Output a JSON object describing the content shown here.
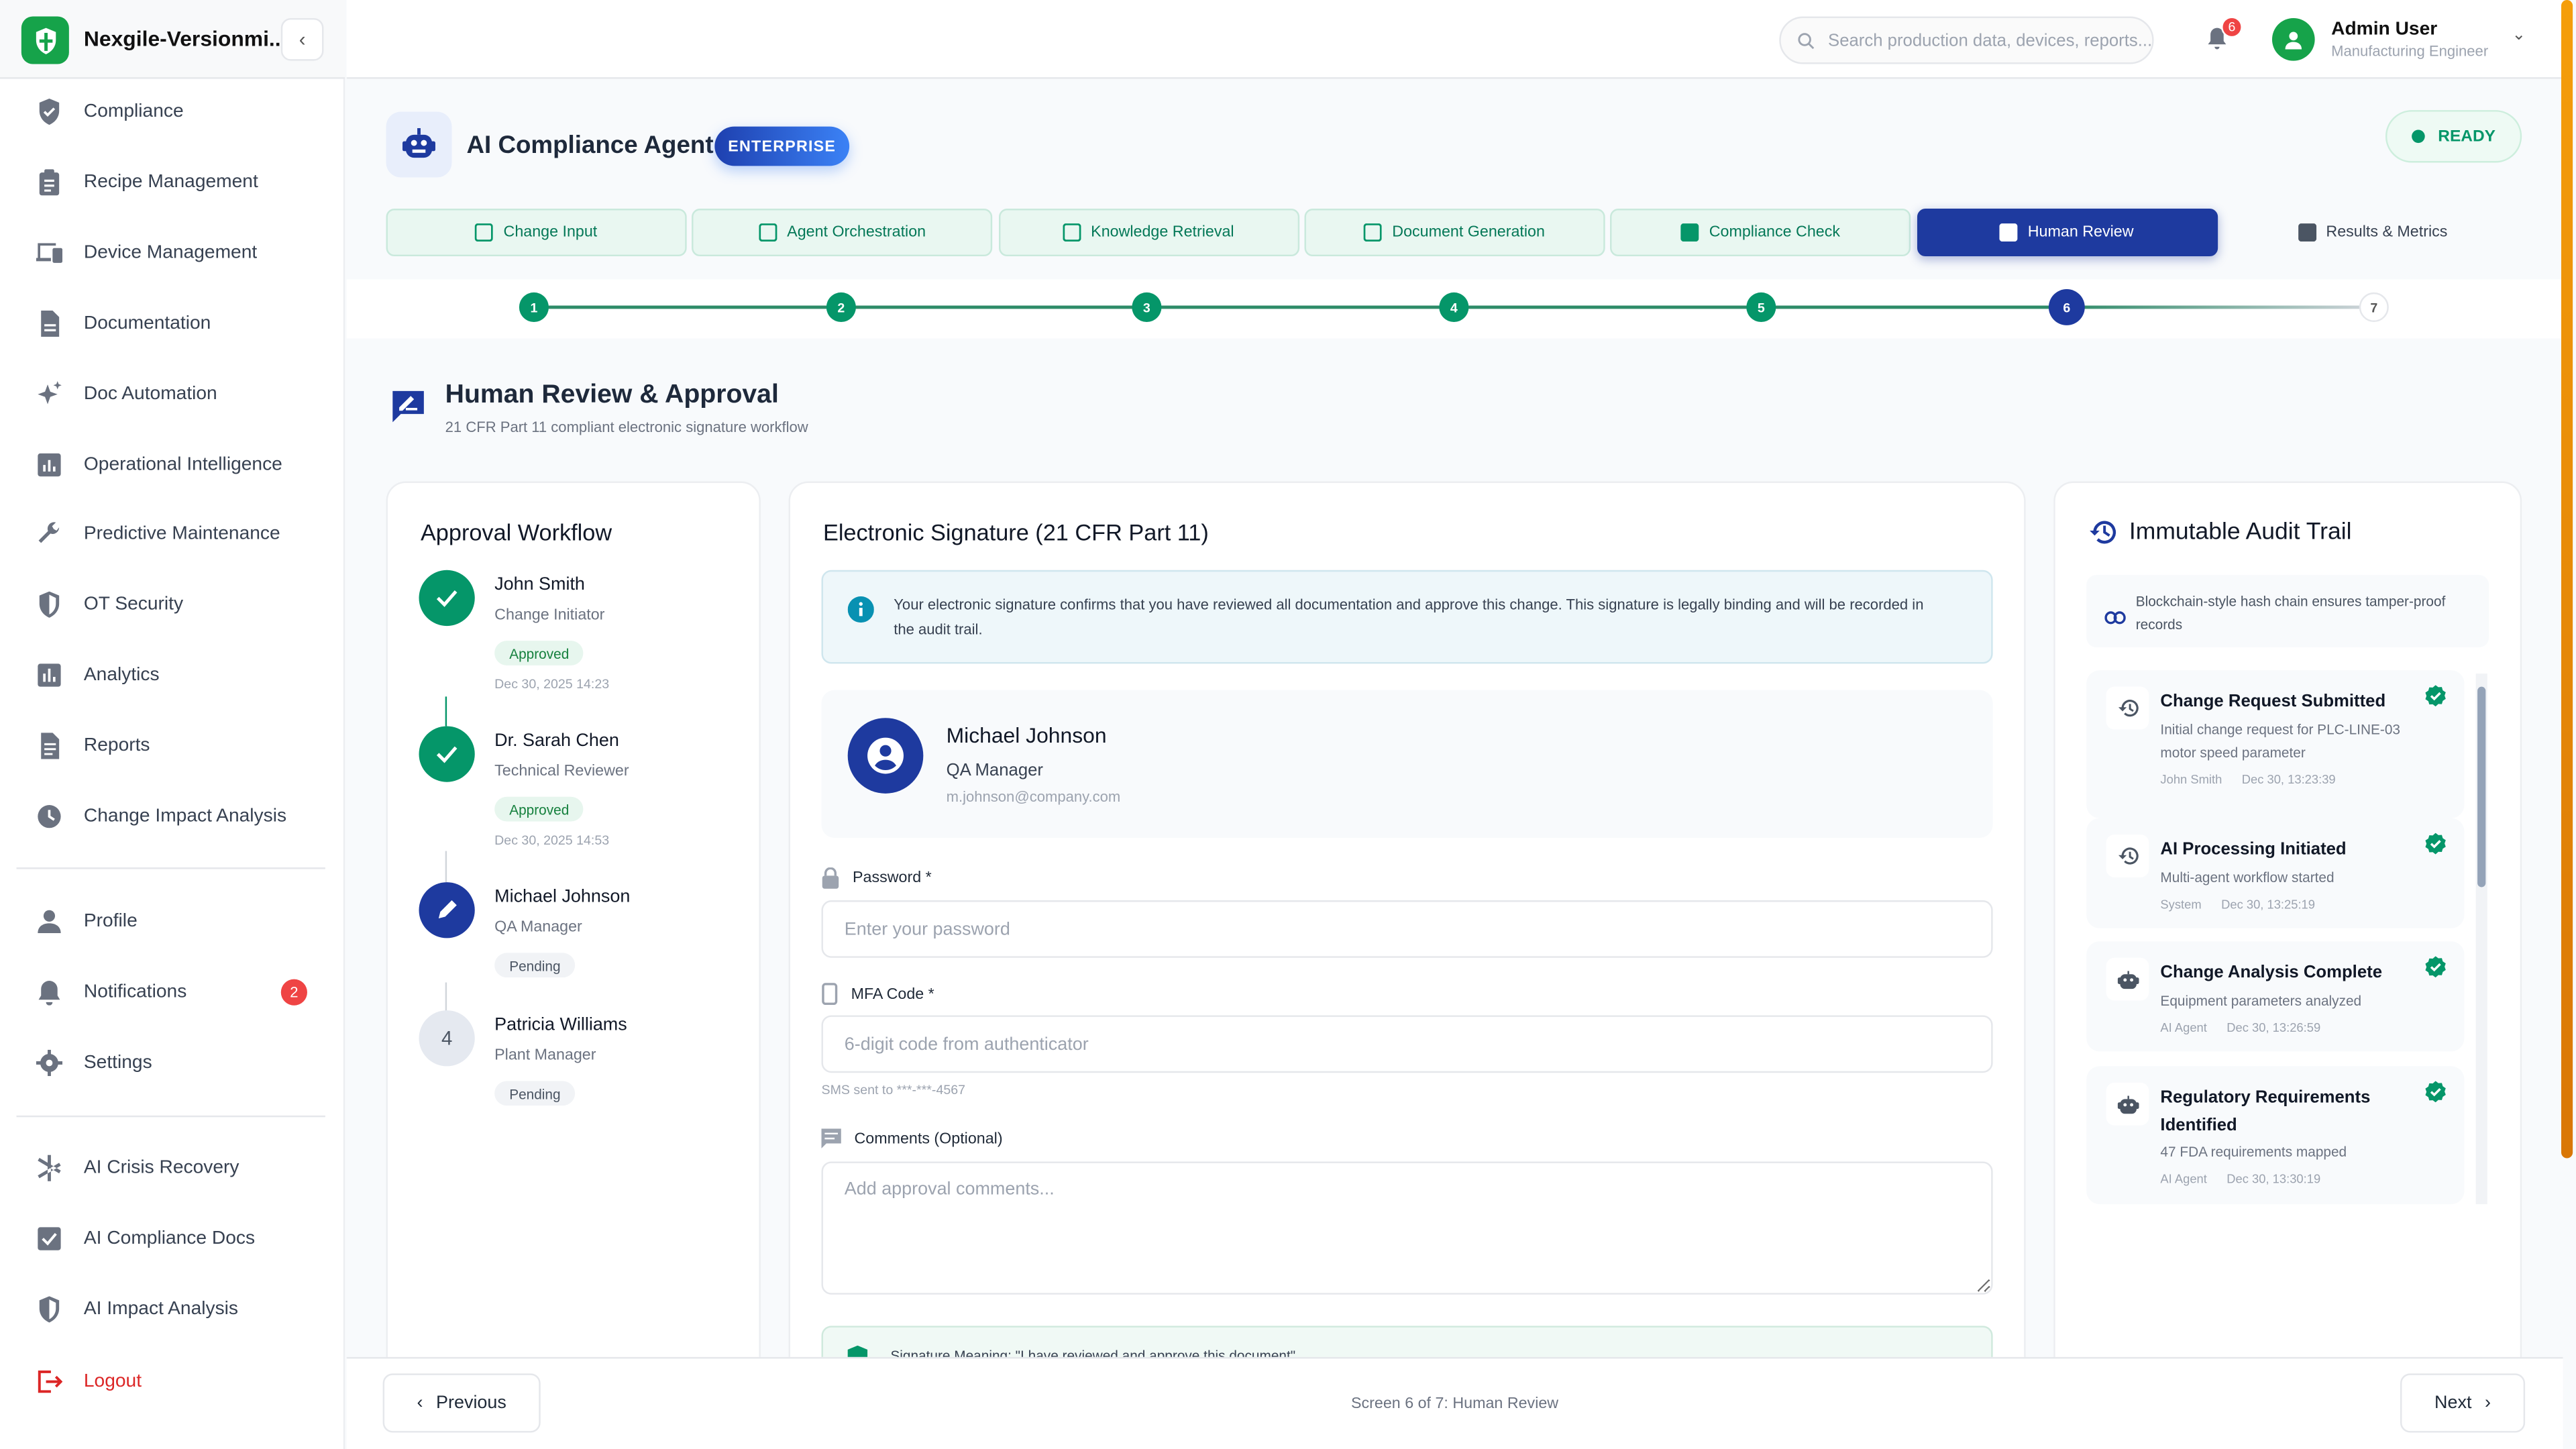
{
  "brand": {
    "name": "Nexgile-Versionmi..."
  },
  "sidebar": {
    "items": [
      {
        "label": "Compliance",
        "icon": "shield-check-icon"
      },
      {
        "label": "Recipe Management",
        "icon": "clipboard-icon"
      },
      {
        "label": "Device Management",
        "icon": "devices-icon"
      },
      {
        "label": "Documentation",
        "icon": "document-icon"
      },
      {
        "label": "Doc Automation",
        "icon": "sparkle-icon"
      },
      {
        "label": "Operational Intelligence",
        "icon": "chart-icon"
      },
      {
        "label": "Predictive Maintenance",
        "icon": "wrench-icon"
      },
      {
        "label": "OT Security",
        "icon": "shield-icon"
      },
      {
        "label": "Analytics",
        "icon": "bar-chart-icon"
      },
      {
        "label": "Reports",
        "icon": "report-icon"
      },
      {
        "label": "Change Impact Analysis",
        "icon": "impact-icon"
      }
    ],
    "account": [
      {
        "label": "Profile",
        "icon": "user-icon"
      },
      {
        "label": "Notifications",
        "icon": "bell-icon",
        "badge": "2"
      },
      {
        "label": "Settings",
        "icon": "gear-icon"
      }
    ],
    "ai": [
      {
        "label": "AI Crisis Recovery",
        "icon": "asterisk-icon"
      },
      {
        "label": "AI Compliance Docs",
        "icon": "checklist-icon"
      },
      {
        "label": "AI Impact Analysis",
        "icon": "shield-icon"
      }
    ],
    "logout": "Logout"
  },
  "topbar": {
    "search_placeholder": "Search production data, devices, reports...",
    "notif_count": "6",
    "user_name": "Admin User",
    "user_role": "Manufacturing Engineer"
  },
  "agent": {
    "title": "AI Compliance Agent",
    "badge": "ENTERPRISE",
    "status": "READY"
  },
  "tabs": [
    {
      "label": "Change Input",
      "state": "done"
    },
    {
      "label": "Agent Orchestration",
      "state": "done"
    },
    {
      "label": "Knowledge Retrieval",
      "state": "done"
    },
    {
      "label": "Document Generation",
      "state": "done"
    },
    {
      "label": "Compliance Check",
      "state": "done"
    },
    {
      "label": "Human Review",
      "state": "active"
    },
    {
      "label": "Results & Metrics",
      "state": "future"
    }
  ],
  "steps": [
    "1",
    "2",
    "3",
    "4",
    "5",
    "6",
    "7"
  ],
  "current_step": 6,
  "section": {
    "title": "Human Review & Approval",
    "subtitle": "21 CFR Part 11 compliant electronic signature workflow"
  },
  "workflow": {
    "title": "Approval Workflow",
    "approvers": [
      {
        "name": "John Smith",
        "role": "Change Initiator",
        "status": "Approved",
        "date": "Dec 30, 2025 14:23"
      },
      {
        "name": "Dr. Sarah Chen",
        "role": "Technical Reviewer",
        "status": "Approved",
        "date": "Dec 30, 2025 14:53"
      },
      {
        "name": "Michael Johnson",
        "role": "QA Manager",
        "status": "Pending"
      },
      {
        "name": "Patricia Williams",
        "role": "Plant Manager",
        "status": "Pending",
        "number": "4"
      }
    ]
  },
  "signature": {
    "title": "Electronic Signature (21 CFR Part 11)",
    "notice": "Your electronic signature confirms that you have reviewed all documentation and approve this change. This signature is legally binding and will be recorded in the audit trail.",
    "signer_name": "Michael Johnson",
    "signer_role": "QA Manager",
    "signer_email": "m.johnson@company.com",
    "password_label": "Password *",
    "password_placeholder": "Enter your password",
    "mfa_label": "MFA Code *",
    "mfa_placeholder": "6-digit code from authenticator",
    "sms_note": "SMS sent to ***-***-4567",
    "comments_label": "Comments (Optional)",
    "comments_placeholder": "Add approval comments...",
    "meaning": "Signature Meaning: \"I have reviewed and approve this document\""
  },
  "audit": {
    "title": "Immutable Audit Trail",
    "note": "Blockchain-style hash chain ensures tamper-proof records",
    "entries": [
      {
        "title": "Change Request Submitted",
        "desc": "Initial change request for PLC-LINE-03 motor speed parameter",
        "actor": "John Smith",
        "time": "Dec 30, 13:23:39",
        "icon": "history-icon"
      },
      {
        "title": "AI Processing Initiated",
        "desc": "Multi-agent workflow started",
        "actor": "System",
        "time": "Dec 30, 13:25:19",
        "icon": "history-icon"
      },
      {
        "title": "Change Analysis Complete",
        "desc": "Equipment parameters analyzed",
        "actor": "AI Agent",
        "time": "Dec 30, 13:26:59",
        "icon": "robot-icon"
      },
      {
        "title": "Regulatory Requirements Identified",
        "desc": "47 FDA requirements mapped",
        "actor": "AI Agent",
        "time": "Dec 30, 13:30:19",
        "icon": "robot-icon"
      }
    ]
  },
  "footer": {
    "previous": "Previous",
    "status": "Screen 6 of 7: Human Review",
    "next": "Next"
  },
  "colors": {
    "primary": "#1e3a9f",
    "success": "#059669",
    "brand": "#16a34a",
    "danger": "#ef4444",
    "scrollbar": "#f59e0b"
  }
}
